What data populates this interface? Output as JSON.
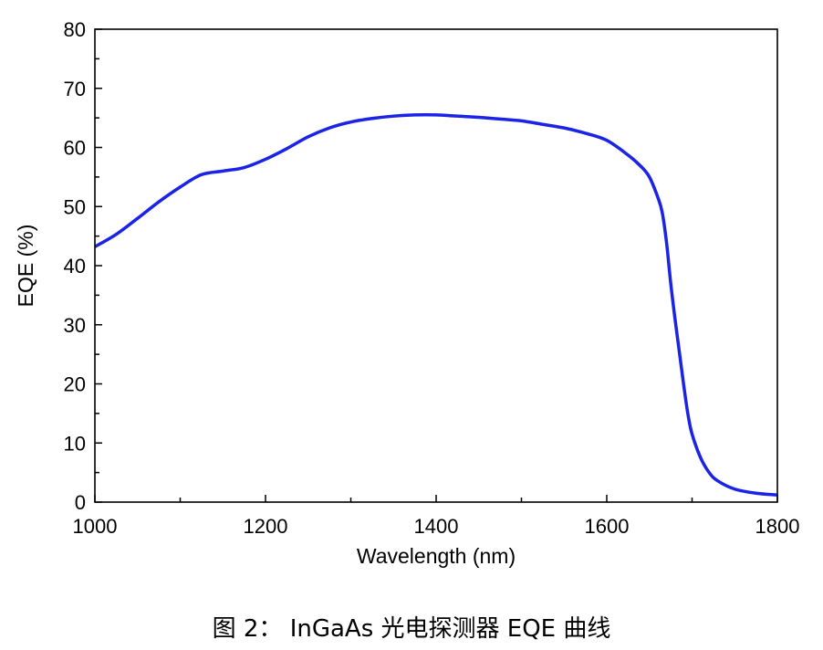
{
  "chart_data": {
    "type": "line",
    "title": "",
    "xlabel": "Wavelength (nm)",
    "ylabel": "EQE (%)",
    "xlim": [
      1000,
      1800
    ],
    "ylim": [
      0,
      80
    ],
    "xticks": [
      1000,
      1200,
      1400,
      1600,
      1800
    ],
    "yticks": [
      0,
      10,
      20,
      30,
      40,
      50,
      60,
      70,
      80
    ],
    "x_minor_step": 100,
    "y_minor_step": 5,
    "grid": false,
    "color": "#1a23e6",
    "series": [
      {
        "x": [
          1000,
          1025,
          1050,
          1075,
          1100,
          1125,
          1150,
          1175,
          1200,
          1225,
          1250,
          1275,
          1300,
          1325,
          1350,
          1375,
          1400,
          1425,
          1450,
          1475,
          1500,
          1525,
          1550,
          1575,
          1600,
          1625,
          1640,
          1650,
          1660,
          1665,
          1670,
          1675,
          1680,
          1685,
          1690,
          1695,
          1700,
          1710,
          1720,
          1730,
          1750,
          1775,
          1800
        ],
        "y": [
          43.2,
          45.3,
          48,
          50.8,
          53.3,
          55.4,
          56,
          56.6,
          58,
          59.8,
          61.8,
          63.3,
          64.3,
          64.9,
          65.3,
          65.5,
          65.5,
          65.3,
          65.1,
          64.8,
          64.5,
          63.9,
          63.3,
          62.4,
          61.2,
          58.7,
          56.8,
          55,
          51.5,
          49,
          44,
          37,
          31,
          25.5,
          20,
          15,
          11.5,
          7.5,
          5,
          3.6,
          2.2,
          1.5,
          1.2
        ]
      }
    ]
  },
  "caption": "图 2：  InGaAs 光电探测器 EQE 曲线"
}
